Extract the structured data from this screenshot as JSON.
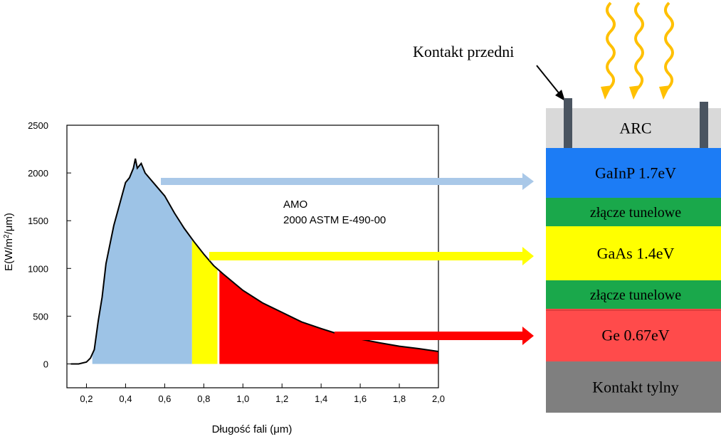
{
  "chart_data": {
    "type": "area",
    "xlabel": "Długość fali (μm)",
    "ylabel_main": "E(W/m",
    "ylabel_sup": "2",
    "ylabel_tail": "/μm)",
    "xlim": [
      0.1,
      2.0
    ],
    "ylim": [
      -250,
      2500
    ],
    "xticks": [
      "0,2",
      "0,4",
      "0,6",
      "0,8",
      "1,0",
      "1,2",
      "1,4",
      "1,6",
      "1,8",
      "2,0"
    ],
    "xtick_values": [
      0.2,
      0.4,
      0.6,
      0.8,
      1.0,
      1.2,
      1.4,
      1.6,
      1.8,
      2.0
    ],
    "yticks": [
      "0",
      "500",
      "1000",
      "1500",
      "2000",
      "2500"
    ],
    "ytick_values": [
      0,
      500,
      1000,
      1500,
      2000,
      2500
    ],
    "annotation_line1": "AMO",
    "annotation_line2": "2000 ASTM E-490-00",
    "spectrum_x": [
      0.12,
      0.16,
      0.2,
      0.22,
      0.24,
      0.26,
      0.28,
      0.3,
      0.32,
      0.34,
      0.36,
      0.38,
      0.4,
      0.42,
      0.44,
      0.45,
      0.46,
      0.48,
      0.5,
      0.55,
      0.6,
      0.65,
      0.7,
      0.75,
      0.8,
      0.85,
      0.9,
      1.0,
      1.1,
      1.2,
      1.3,
      1.4,
      1.5,
      1.6,
      1.7,
      1.8,
      1.9,
      2.0
    ],
    "spectrum_y": [
      0,
      0,
      20,
      60,
      150,
      450,
      700,
      1050,
      1250,
      1450,
      1600,
      1750,
      1900,
      1950,
      2050,
      2150,
      2050,
      2100,
      2000,
      1880,
      1760,
      1580,
      1420,
      1280,
      1150,
      1030,
      940,
      770,
      640,
      540,
      440,
      370,
      305,
      260,
      220,
      185,
      160,
      130
    ],
    "bands": [
      {
        "from": 0.23,
        "to": 0.74,
        "color": "#9dc3e6"
      },
      {
        "from": 0.74,
        "to": 0.87,
        "color": "#ffff00"
      },
      {
        "from": 0.88,
        "to": 2.0,
        "color": "#ff0000"
      }
    ]
  },
  "diagram": {
    "front_contact_label": "Kontakt przedni",
    "layers": [
      {
        "label": "ARC",
        "color": "#d9d9d9",
        "text_color": "#000000"
      },
      {
        "label": "GaInP 1.7eV",
        "color": "#1c7cf5",
        "text_color": "#000000"
      },
      {
        "label": "złącze tunelowe",
        "color": "#1aa84b",
        "text_color": "#000000"
      },
      {
        "label": "GaAs 1.4eV",
        "color": "#ffff00",
        "text_color": "#000000"
      },
      {
        "label": "złącze tunelowe",
        "color": "#1aa84b",
        "text_color": "#000000"
      },
      {
        "label": "Ge 0.67eV",
        "color": "#ff4b4b",
        "text_color": "#000000"
      },
      {
        "label": "Kontakt tylny",
        "color": "#7f7f7f",
        "text_color": "#000000"
      }
    ],
    "arrow_colors": {
      "blue": "#a9c8e8",
      "yellow": "#ffff00",
      "red": "#ff0000"
    },
    "sun_ray_color": "#ffc000",
    "contact_color": "#4a5460"
  }
}
